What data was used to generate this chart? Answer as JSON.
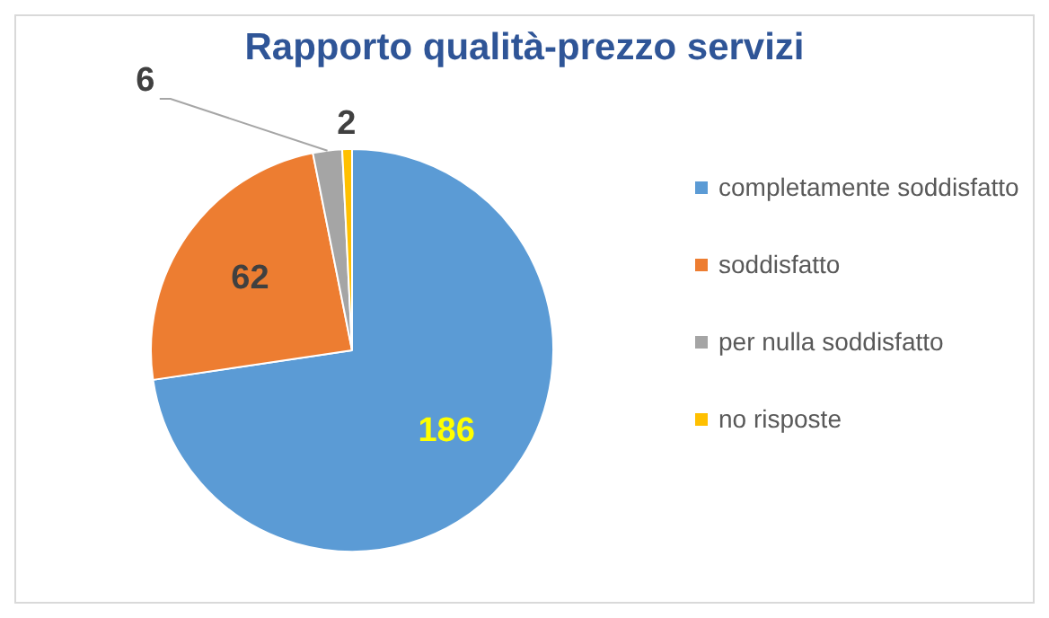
{
  "chart_data": {
    "type": "pie",
    "title": "Rapporto qualità-prezzo servizi",
    "categories": [
      "completamente soddisfatto",
      "soddisfatto",
      "per nulla soddisfatto",
      "no risposte"
    ],
    "values": [
      186,
      62,
      6,
      2
    ],
    "colors": [
      "#5b9bd5",
      "#ed7d31",
      "#a5a5a5",
      "#ffc000"
    ],
    "data_labels": true,
    "legend": "right"
  }
}
